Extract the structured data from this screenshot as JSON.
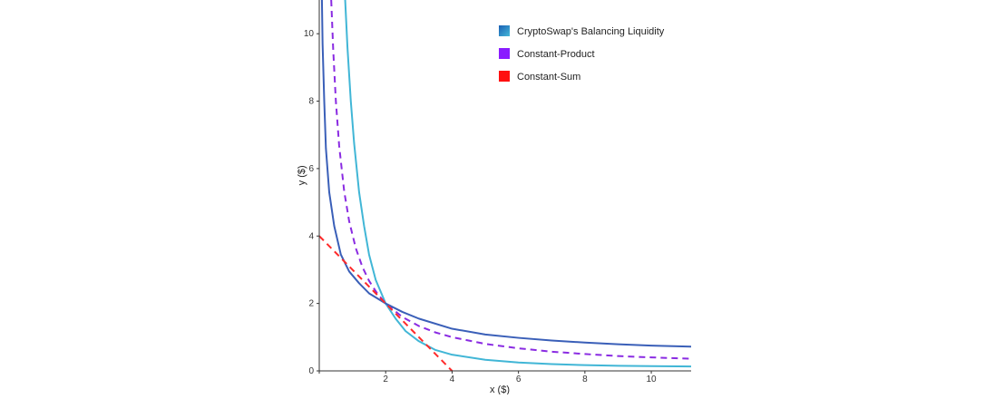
{
  "chart_data": {
    "type": "line",
    "title": "",
    "xlabel": "x ($)",
    "ylabel": "y ($)",
    "xlim": [
      0,
      11.2
    ],
    "ylim": [
      0,
      11
    ],
    "x_ticks": [
      0,
      2,
      4,
      6,
      8,
      10
    ],
    "y_ticks": [
      0,
      2,
      4,
      6,
      8,
      10
    ],
    "x_tick_labels": [
      "2",
      "4",
      "6",
      "8",
      "10"
    ],
    "y_tick_labels": [
      "0",
      "2",
      "4",
      "6",
      "8",
      "10"
    ],
    "grid": false,
    "legend_position": "top-right",
    "legend": [
      {
        "label": "CryptoSwap's Balancing Liquidity",
        "color": "#1a5fb4",
        "color2": "#45b8d8"
      },
      {
        "label": "Constant-Product",
        "color": "#8a1cff"
      },
      {
        "label": "Constant-Sum",
        "color": "#ff1010"
      }
    ],
    "series": [
      {
        "color": "#41b6d6",
        "style": "solid",
        "points": [
          [
            0.78,
            11
          ],
          [
            0.85,
            9.58
          ],
          [
            0.95,
            8.0
          ],
          [
            1.05,
            6.75
          ],
          [
            1.2,
            5.3
          ],
          [
            1.35,
            4.3
          ],
          [
            1.5,
            3.45
          ],
          [
            1.7,
            2.7
          ],
          [
            2.0,
            2.0
          ],
          [
            2.3,
            1.55
          ],
          [
            2.6,
            1.18
          ],
          [
            3.0,
            0.88
          ],
          [
            3.5,
            0.62
          ],
          [
            4.0,
            0.48
          ],
          [
            5.0,
            0.33
          ],
          [
            6.0,
            0.25
          ],
          [
            7.0,
            0.2
          ],
          [
            8.0,
            0.17
          ],
          [
            9.0,
            0.15
          ],
          [
            10.0,
            0.14
          ],
          [
            11.2,
            0.13
          ]
        ]
      },
      {
        "color": "#8a2be2",
        "style": "dashed",
        "points": [
          [
            0.36,
            11
          ],
          [
            0.42,
            9.52
          ],
          [
            0.5,
            8.0
          ],
          [
            0.6,
            6.67
          ],
          [
            0.75,
            5.33
          ],
          [
            0.9,
            4.44
          ],
          [
            1.1,
            3.64
          ],
          [
            1.3,
            3.08
          ],
          [
            1.5,
            2.67
          ],
          [
            1.75,
            2.29
          ],
          [
            2.0,
            2.0
          ],
          [
            2.5,
            1.6
          ],
          [
            3.0,
            1.33
          ],
          [
            3.5,
            1.14
          ],
          [
            4.0,
            1.0
          ],
          [
            5.0,
            0.8
          ],
          [
            6.0,
            0.67
          ],
          [
            7.0,
            0.57
          ],
          [
            8.0,
            0.5
          ],
          [
            9.0,
            0.44
          ],
          [
            10.0,
            0.4
          ],
          [
            11.2,
            0.36
          ]
        ]
      },
      {
        "color": "#3a5fb8",
        "style": "solid",
        "points": [
          [
            0.08,
            11
          ],
          [
            0.1,
            9.7
          ],
          [
            0.15,
            8.0
          ],
          [
            0.2,
            6.6
          ],
          [
            0.3,
            5.3
          ],
          [
            0.45,
            4.3
          ],
          [
            0.65,
            3.45
          ],
          [
            0.9,
            2.95
          ],
          [
            1.2,
            2.6
          ],
          [
            1.5,
            2.3
          ],
          [
            2.0,
            2.0
          ],
          [
            2.5,
            1.75
          ],
          [
            3.0,
            1.55
          ],
          [
            4.0,
            1.25
          ],
          [
            5.0,
            1.08
          ],
          [
            6.0,
            0.98
          ],
          [
            7.0,
            0.9
          ],
          [
            8.0,
            0.84
          ],
          [
            9.0,
            0.79
          ],
          [
            10.0,
            0.75
          ],
          [
            11.2,
            0.72
          ]
        ]
      },
      {
        "color": "#ff2a2a",
        "style": "dashed",
        "points": [
          [
            0.0,
            4.0
          ],
          [
            1.0,
            3.0
          ],
          [
            2.0,
            2.0
          ],
          [
            3.0,
            1.0
          ],
          [
            4.0,
            0.0
          ]
        ]
      }
    ]
  }
}
